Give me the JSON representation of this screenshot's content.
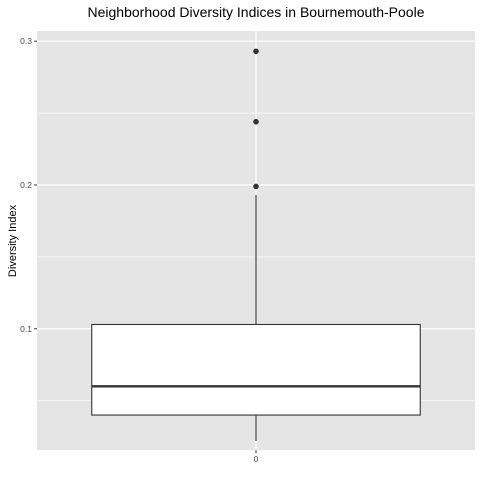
{
  "chart_data": {
    "type": "boxplot",
    "title": "Neighborhood Diversity Indices in Bournemouth-Poole",
    "xlabel": "",
    "ylabel": "Diversity Index",
    "categories": [
      "0"
    ],
    "ylim": [
      0.0157,
      0.3071
    ],
    "y_ticks": [
      0.1,
      0.2,
      0.3
    ],
    "y_tick_labels": [
      "0.1",
      "0.2",
      "0.3"
    ],
    "x_tick_labels": [
      "0"
    ],
    "grid": true,
    "box": {
      "whisker_low": 0.022,
      "q1": 0.04,
      "median": 0.06,
      "q3": 0.103,
      "whisker_high": 0.193
    },
    "outliers": [
      0.199,
      0.244,
      0.293
    ],
    "colors": {
      "panel_background": "#e5e5e5",
      "grid": "#ffffff",
      "box_fill": "#ffffff",
      "box_line": "#333333",
      "outlier": "#333333"
    }
  }
}
